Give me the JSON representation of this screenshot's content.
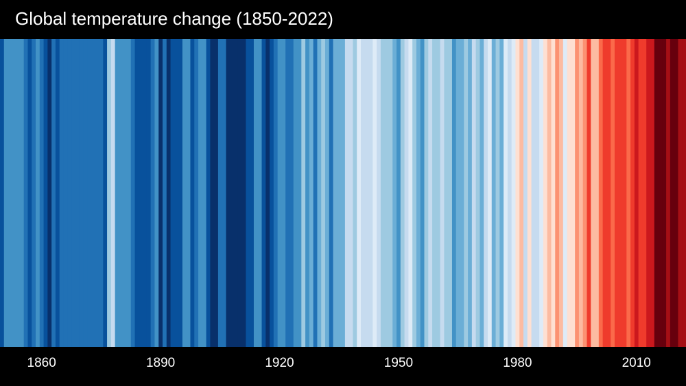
{
  "chart_data": {
    "type": "heatmap",
    "title": "Global temperature change (1850-2022)",
    "xlabel": "",
    "ylabel": "",
    "x_range": [
      1850,
      2022
    ],
    "x_ticks": [
      "1860",
      "1890",
      "1920",
      "1950",
      "1980",
      "2010"
    ],
    "grid": false,
    "legend": "none",
    "color_scale": {
      "blue": [
        "#deebf7",
        "#c6dbef",
        "#9ecae1",
        "#6baed6",
        "#4292c6",
        "#2171b5",
        "#08519c",
        "#08306b"
      ],
      "red": [
        "#fee0d2",
        "#fcbba1",
        "#fc9272",
        "#fb6a4a",
        "#ef3b2c",
        "#cb181d",
        "#a50f15",
        "#67000d"
      ]
    },
    "level_note_scale": "negative = blue bin (cooler), positive = red bin (warmer), magnitude 1-8",
    "years_start": 1850,
    "levels": [
      -7,
      -5,
      -5,
      -5,
      -5,
      -5,
      -6,
      -7,
      -6,
      -5,
      -6,
      -7,
      -8,
      -6,
      -7,
      -6,
      -6,
      -6,
      -6,
      -6,
      -6,
      -6,
      -6,
      -6,
      -6,
      -6,
      -7,
      -3,
      -2,
      -5,
      -5,
      -5,
      -5,
      -6,
      -7,
      -7,
      -7,
      -7,
      -6,
      -5,
      -8,
      -6,
      -8,
      -7,
      -7,
      -7,
      -5,
      -5,
      -7,
      -6,
      -5,
      -5,
      -7,
      -8,
      -8,
      -6,
      -6,
      -8,
      -8,
      -8,
      -8,
      -8,
      -7,
      -7,
      -5,
      -5,
      -7,
      -8,
      -7,
      -6,
      -5,
      -5,
      -6,
      -6,
      -5,
      -5,
      -3,
      -5,
      -4,
      -6,
      -4,
      -3,
      -4,
      -6,
      -4,
      -4,
      -4,
      -2,
      -2,
      -3,
      -1,
      -2,
      -2,
      -2,
      -1,
      -2,
      -3,
      -3,
      -3,
      -4,
      -5,
      -3,
      -2,
      -1,
      -3,
      -4,
      -5,
      -3,
      -2,
      -3,
      -3,
      -2,
      -3,
      -3,
      -5,
      -4,
      -4,
      -3,
      -4,
      -2,
      -3,
      -4,
      -2,
      -1,
      -4,
      -3,
      -4,
      -1,
      -2,
      -1,
      1,
      2,
      -2,
      1,
      -2,
      -2,
      -1,
      1,
      2,
      1,
      3,
      2,
      -1,
      1,
      1,
      3,
      2,
      3,
      5,
      2,
      2,
      4,
      5,
      5,
      4,
      5,
      5,
      5,
      4,
      5,
      6,
      5,
      5,
      6,
      6,
      8,
      8,
      8,
      7,
      8,
      8,
      7,
      7
    ]
  }
}
